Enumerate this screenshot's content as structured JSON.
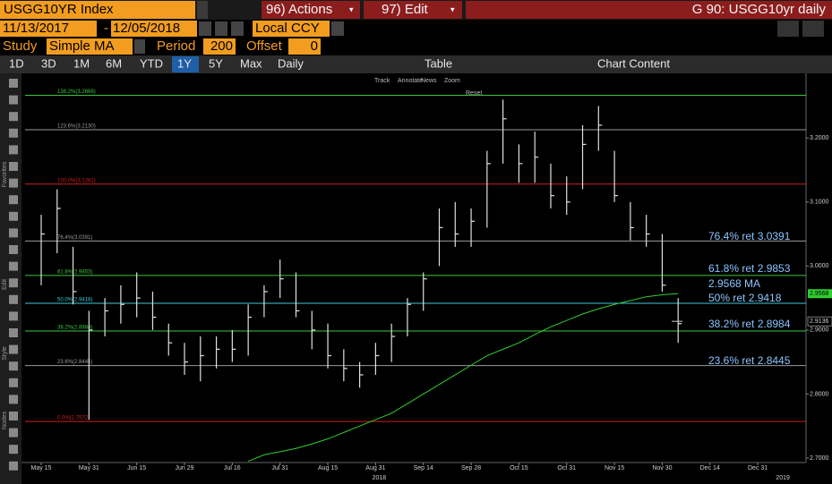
{
  "header": {
    "ticker": "USGG10YR Index",
    "actions": "96) Actions",
    "edit": "97) Edit",
    "window": "G 90: USGG10yr daily"
  },
  "dates": {
    "start": "11/13/2017",
    "separator": "-",
    "end": "12/05/2018",
    "currency": "Local CCY"
  },
  "study": {
    "label": "Study",
    "name": "Simple MA",
    "period_label": "Period",
    "period": "200",
    "offset_label": "Offset",
    "offset": "0"
  },
  "toolbar": {
    "ranges": [
      "1D",
      "3D",
      "1M",
      "6M",
      "YTD",
      "1Y",
      "5Y",
      "Max"
    ],
    "active": "1Y",
    "frequency": "Daily",
    "table": "Table",
    "content": "Chart Content"
  },
  "chart_tools": [
    "Track",
    "Annotate",
    "News",
    "Zoom"
  ],
  "reset": "Reset",
  "sidebar_labels": [
    "Favorites",
    "Edit",
    "Style",
    "Nodes"
  ],
  "chart_data": {
    "type": "hlc",
    "categories": [
      "May 15",
      null,
      null,
      "May 31",
      null,
      null,
      "Jun 15",
      null,
      null,
      "Jun 29",
      null,
      null,
      "Jul 16",
      null,
      null,
      "Jul 31",
      null,
      null,
      "Aug 15",
      null,
      null,
      "Aug 31",
      null,
      null,
      "Sep 14",
      null,
      null,
      "Sep 28",
      null,
      null,
      "Oct 15",
      null,
      null,
      "Oct 31",
      null,
      null,
      "Nov 15",
      null,
      null,
      "Nov 30",
      null,
      null,
      "Dec 14",
      null,
      null,
      "Dec 31"
    ],
    "year_labels": [
      {
        "label": "2018",
        "category": 21
      },
      {
        "label": "2019",
        "category": 45
      }
    ],
    "price": {
      "color": "#e0e0e0",
      "high": [
        3.08,
        3.12,
        3.03,
        2.93,
        2.95,
        2.97,
        2.99,
        2.96,
        2.91,
        2.88,
        2.89,
        2.89,
        2.9,
        2.94,
        2.97,
        3.01,
        2.99,
        2.93,
        2.91,
        2.87,
        2.85,
        2.88,
        2.91,
        2.95,
        2.99,
        3.09,
        3.1,
        3.09,
        3.18,
        3.26,
        3.19,
        3.21,
        3.16,
        3.14,
        3.22,
        3.25,
        3.18,
        3.1,
        3.08,
        3.05,
        2.95,
        null,
        null,
        null,
        null,
        null
      ],
      "low": [
        2.97,
        3.02,
        2.94,
        2.76,
        2.89,
        2.91,
        2.92,
        2.9,
        2.86,
        2.83,
        2.82,
        2.84,
        2.85,
        2.86,
        2.92,
        2.95,
        2.92,
        2.87,
        2.84,
        2.82,
        2.81,
        2.83,
        2.85,
        2.89,
        2.93,
        3.0,
        3.03,
        3.03,
        3.06,
        3.16,
        3.13,
        3.13,
        3.09,
        3.08,
        3.12,
        3.18,
        3.1,
        3.04,
        3.03,
        2.96,
        2.88,
        null,
        null,
        null,
        null,
        null
      ],
      "close": [
        3.05,
        3.09,
        2.96,
        2.9,
        2.93,
        2.94,
        2.95,
        2.92,
        2.88,
        2.85,
        2.86,
        2.87,
        2.87,
        2.92,
        2.96,
        2.98,
        2.93,
        2.9,
        2.86,
        2.84,
        2.83,
        2.86,
        2.89,
        2.94,
        2.98,
        3.06,
        3.05,
        3.07,
        3.16,
        3.23,
        3.16,
        3.17,
        3.11,
        3.1,
        3.19,
        3.22,
        3.11,
        3.06,
        3.05,
        2.97,
        2.91,
        null,
        null,
        null,
        null,
        null
      ]
    },
    "ma": {
      "color": "#2fcf2f",
      "values": [
        null,
        null,
        null,
        null,
        null,
        null,
        null,
        null,
        null,
        null,
        null,
        null,
        null,
        2.695,
        2.705,
        2.71,
        2.715,
        2.722,
        2.73,
        2.74,
        2.75,
        2.76,
        2.77,
        2.785,
        2.8,
        2.815,
        2.83,
        2.845,
        2.86,
        2.87,
        2.88,
        2.893,
        2.905,
        2.915,
        2.925,
        2.933,
        2.94,
        2.946,
        2.952,
        2.955,
        2.9568,
        null,
        null,
        null,
        null,
        null
      ]
    },
    "fib_levels": [
      {
        "label": "138.2%(3.2668)",
        "value": 3.2668,
        "color": "#3ec43e"
      },
      {
        "label": "123.6%(3.2130)",
        "value": 3.213,
        "color": "#9a9a9a"
      },
      {
        "label": "100.0%(3.1281)",
        "value": 3.1281,
        "color": "#d02020"
      },
      {
        "label": "76.4%(3.0391)",
        "value": 3.0391,
        "color": "#9a9a9a"
      },
      {
        "label": "61.8%(2.9853)",
        "value": 2.9853,
        "color": "#3ec43e"
      },
      {
        "label": "50.0%(2.9418)",
        "value": 2.9418,
        "color": "#3ec8d8"
      },
      {
        "label": "38.2%(2.8984)",
        "value": 2.8984,
        "color": "#3ec43e"
      },
      {
        "label": "23.6%(2.8445)",
        "value": 2.8445,
        "color": "#9a9a9a"
      },
      {
        "label": "0.0%(2.7572)",
        "value": 2.7572,
        "color": "#d02020"
      }
    ],
    "annotations": [
      "76.4% ret 3.0391",
      "61.8% ret 2.9853",
      "2.9568 MA",
      "50% ret 2.9418",
      "38.2% ret 2.8984",
      "23.6% ret 2.8445"
    ],
    "ma_tag": 2.9568,
    "last_price": 2.9136,
    "ylim": [
      2.693,
      3.301
    ],
    "yticks": [
      {
        "value": 2.7,
        "label": "2.7000"
      },
      {
        "value": 2.8,
        "label": "2.8000"
      },
      {
        "value": 2.9,
        "label": "2.9000"
      },
      {
        "value": 3.0,
        "label": "3.0000"
      },
      {
        "value": 3.1,
        "label": "3.1000"
      },
      {
        "value": 3.2,
        "label": "3.2000"
      }
    ]
  }
}
